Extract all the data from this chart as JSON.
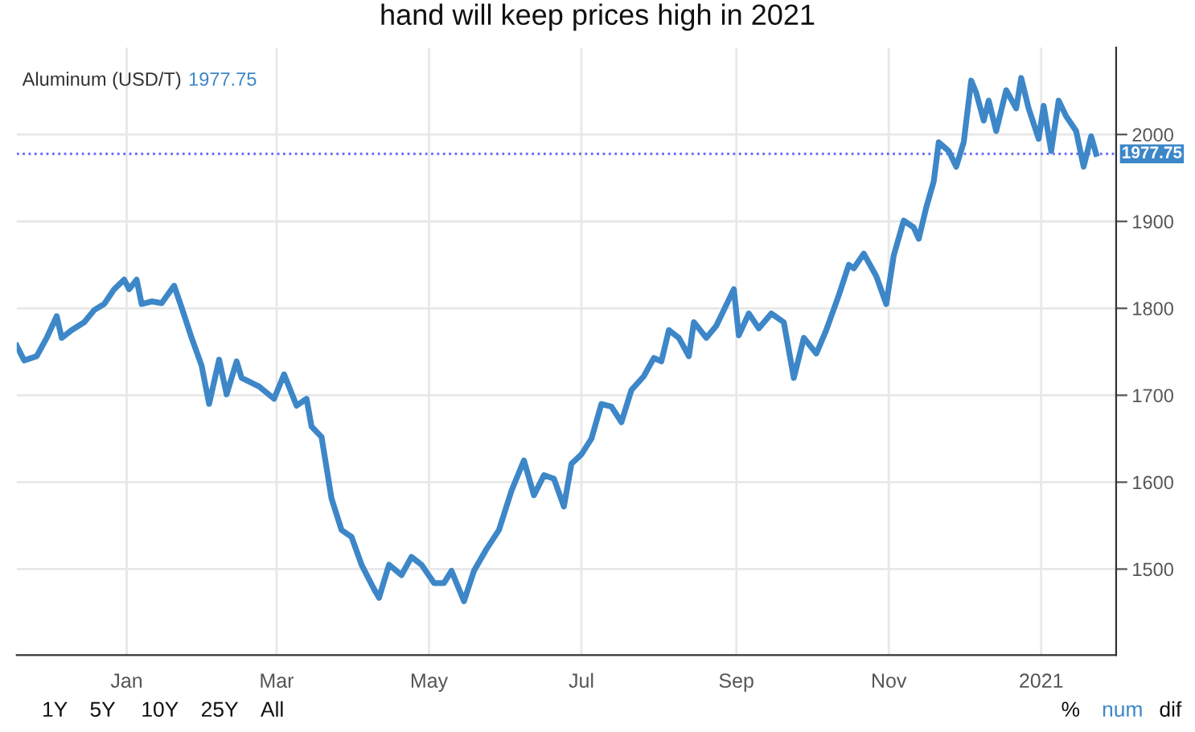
{
  "chart_data": {
    "type": "line",
    "title": "hand will keep prices high in 2021",
    "x": [
      "2019-11-18",
      "2019-11-21",
      "2019-11-26",
      "2019-11-30",
      "2019-12-04",
      "2019-12-06",
      "2019-12-10",
      "2019-12-15",
      "2019-12-19",
      "2019-12-23",
      "2019-12-27",
      "2019-12-31",
      "2020-01-02",
      "2020-01-05",
      "2020-01-07",
      "2020-01-11",
      "2020-01-15",
      "2020-01-20",
      "2020-01-23",
      "2020-01-27",
      "2020-01-31",
      "2020-02-03",
      "2020-02-07",
      "2020-02-10",
      "2020-02-14",
      "2020-02-16",
      "2020-02-23",
      "2020-02-29",
      "2020-03-04",
      "2020-03-09",
      "2020-03-13",
      "2020-03-15",
      "2020-03-19",
      "2020-03-23",
      "2020-03-27",
      "2020-03-31",
      "2020-04-04",
      "2020-04-09",
      "2020-04-11",
      "2020-04-15",
      "2020-04-20",
      "2020-04-24",
      "2020-04-28",
      "2020-05-03",
      "2020-05-07",
      "2020-05-10",
      "2020-05-15",
      "2020-05-19",
      "2020-05-24",
      "2020-05-29",
      "2020-06-03",
      "2020-06-08",
      "2020-06-12",
      "2020-06-16",
      "2020-06-20",
      "2020-06-24",
      "2020-06-27",
      "2020-07-01",
      "2020-07-05",
      "2020-07-09",
      "2020-07-13",
      "2020-07-17",
      "2020-07-21",
      "2020-07-26",
      "2020-07-30",
      "2020-08-02",
      "2020-08-05",
      "2020-08-09",
      "2020-08-13",
      "2020-08-15",
      "2020-08-20",
      "2020-08-24",
      "2020-08-31",
      "2020-09-02",
      "2020-09-06",
      "2020-09-10",
      "2020-09-15",
      "2020-09-20",
      "2020-09-24",
      "2020-09-28",
      "2020-10-03",
      "2020-10-07",
      "2020-10-12",
      "2020-10-16",
      "2020-10-18",
      "2020-10-22",
      "2020-10-27",
      "2020-10-31",
      "2020-11-03",
      "2020-11-07",
      "2020-11-11",
      "2020-11-13",
      "2020-11-16",
      "2020-11-19",
      "2020-11-21",
      "2020-11-25",
      "2020-11-28",
      "2020-12-01",
      "2020-12-04",
      "2020-12-06",
      "2020-12-09",
      "2020-12-11",
      "2020-12-14",
      "2020-12-18",
      "2020-12-22",
      "2020-12-24",
      "2020-12-27",
      "2020-12-31",
      "2021-01-02",
      "2021-01-05",
      "2021-01-08",
      "2021-01-11",
      "2021-01-15",
      "2021-01-18",
      "2021-01-21",
      "2021-01-23"
    ],
    "series": [
      {
        "color": "#3d87c8",
        "values": [
          1757,
          1740,
          1745,
          1766,
          1791,
          1766,
          1775,
          1784,
          1798,
          1805,
          1822,
          1833,
          1822,
          1833,
          1805,
          1808,
          1806,
          1826,
          1801,
          1766,
          1734,
          1690,
          1741,
          1701,
          1739,
          1720,
          1710,
          1696,
          1724,
          1688,
          1696,
          1664,
          1652,
          1581,
          1545,
          1537,
          1505,
          1477,
          1467,
          1505,
          1493,
          1514,
          1505,
          1484,
          1484,
          1498,
          1463,
          1498,
          1523,
          1545,
          1590,
          1625,
          1585,
          1608,
          1604,
          1572,
          1621,
          1632,
          1650,
          1690,
          1687,
          1669,
          1706,
          1722,
          1743,
          1739,
          1775,
          1766,
          1745,
          1784,
          1766,
          1780,
          1822,
          1769,
          1794,
          1777,
          1794,
          1784,
          1720,
          1766,
          1748,
          1775,
          1815,
          1850,
          1846,
          1863,
          1837,
          1805,
          1861,
          1901,
          1893,
          1880,
          1916,
          1946,
          1991,
          1981,
          1963,
          1991,
          2062,
          2048,
          2016,
          2039,
          2004,
          2051,
          2030,
          2065,
          2030,
          1995,
          2033,
          1981,
          2039,
          2021,
          2004,
          1963,
          1998,
          1977.75
        ]
      }
    ],
    "xlim": [
      "2019-11-18",
      "2021-01-31"
    ],
    "xticks": [
      {
        "value": "2020-01-01",
        "label": "Jan"
      },
      {
        "value": "2020-03-01",
        "label": "Mar"
      },
      {
        "value": "2020-05-01",
        "label": "May"
      },
      {
        "value": "2020-07-01",
        "label": "Jul"
      },
      {
        "value": "2020-09-01",
        "label": "Sep"
      },
      {
        "value": "2020-11-01",
        "label": "Nov"
      },
      {
        "value": "2021-01-01",
        "label": "2021"
      }
    ],
    "ylim": [
      1401,
      2100
    ],
    "yticks": [
      1500,
      1600,
      1700,
      1800,
      1900,
      2000
    ],
    "ref_lines": [
      {
        "axis": "y",
        "value": 1977.75,
        "label": "1977.75",
        "color": "#6666ff",
        "line_style": "dotted"
      }
    ],
    "grid": true,
    "marker": "none",
    "line_style": "solid",
    "legend": false,
    "annotations": [
      "Aluminum (USD/T)",
      "1977.75",
      "1Y",
      "5Y",
      "10Y",
      "25Y",
      "All",
      "%",
      "num",
      "dif"
    ]
  }
}
